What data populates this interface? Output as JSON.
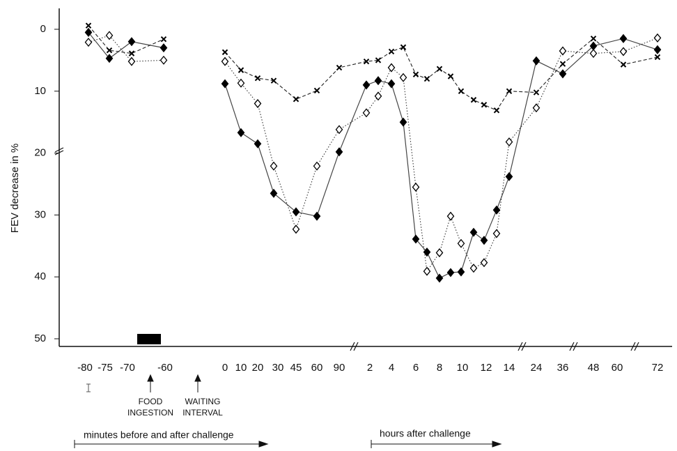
{
  "chart_data": {
    "type": "line",
    "y_label": "FEV decrease in %",
    "annotations": [
      "FOOD",
      "INGESTION",
      "WAITING",
      "INTERVAL",
      "minutes before and after challenge",
      "hours after challenge"
    ],
    "categories": [
      "-80",
      "-75",
      "-70",
      "-60",
      "0",
      "10",
      "20",
      "30",
      "45",
      "60",
      "90",
      "2",
      null,
      "4",
      null,
      "6",
      null,
      "8",
      null,
      "10",
      null,
      "12",
      null,
      "14",
      "24",
      "36",
      "48",
      "60",
      "72"
    ],
    "ylim": [
      50,
      0
    ],
    "yticks": [
      0,
      10,
      20,
      30,
      40,
      50
    ],
    "series": [
      {
        "color": "#000000",
        "marker": "filled-diamond",
        "linestyle": "solid",
        "values": [
          0.5,
          4.7,
          2.0,
          3.0,
          8.8,
          16.7,
          18.5,
          26.5,
          29.5,
          30.2,
          19.8,
          9.0,
          8.3,
          8.8,
          15.0,
          33.9,
          36.0,
          40.2,
          39.3,
          39.2,
          32.8,
          34.1,
          29.2,
          23.8,
          5.1,
          7.2,
          2.7,
          1.5,
          3.3
        ]
      },
      {
        "color": "#000000",
        "marker": "open-diamond",
        "linestyle": "dotted",
        "values": [
          2.1,
          1.0,
          5.2,
          5.0,
          5.2,
          8.7,
          12.0,
          22.1,
          32.3,
          22.1,
          16.2,
          13.5,
          10.8,
          6.2,
          7.8,
          25.5,
          39.1,
          36.1,
          30.2,
          34.6,
          38.6,
          37.7,
          33.0,
          18.2,
          12.7,
          3.5,
          3.9,
          3.6,
          1.4
        ]
      },
      {
        "color": "#000000",
        "marker": "x",
        "linestyle": "dashed",
        "values": [
          -0.6,
          3.4,
          3.9,
          1.6,
          3.7,
          6.6,
          7.9,
          8.3,
          11.3,
          9.9,
          6.2,
          5.2,
          5.0,
          3.6,
          2.9,
          7.3,
          8.0,
          6.4,
          7.6,
          10.0,
          11.4,
          12.2,
          13.1,
          10.0,
          10.2,
          5.6,
          1.5,
          5.7,
          4.5
        ]
      }
    ]
  }
}
